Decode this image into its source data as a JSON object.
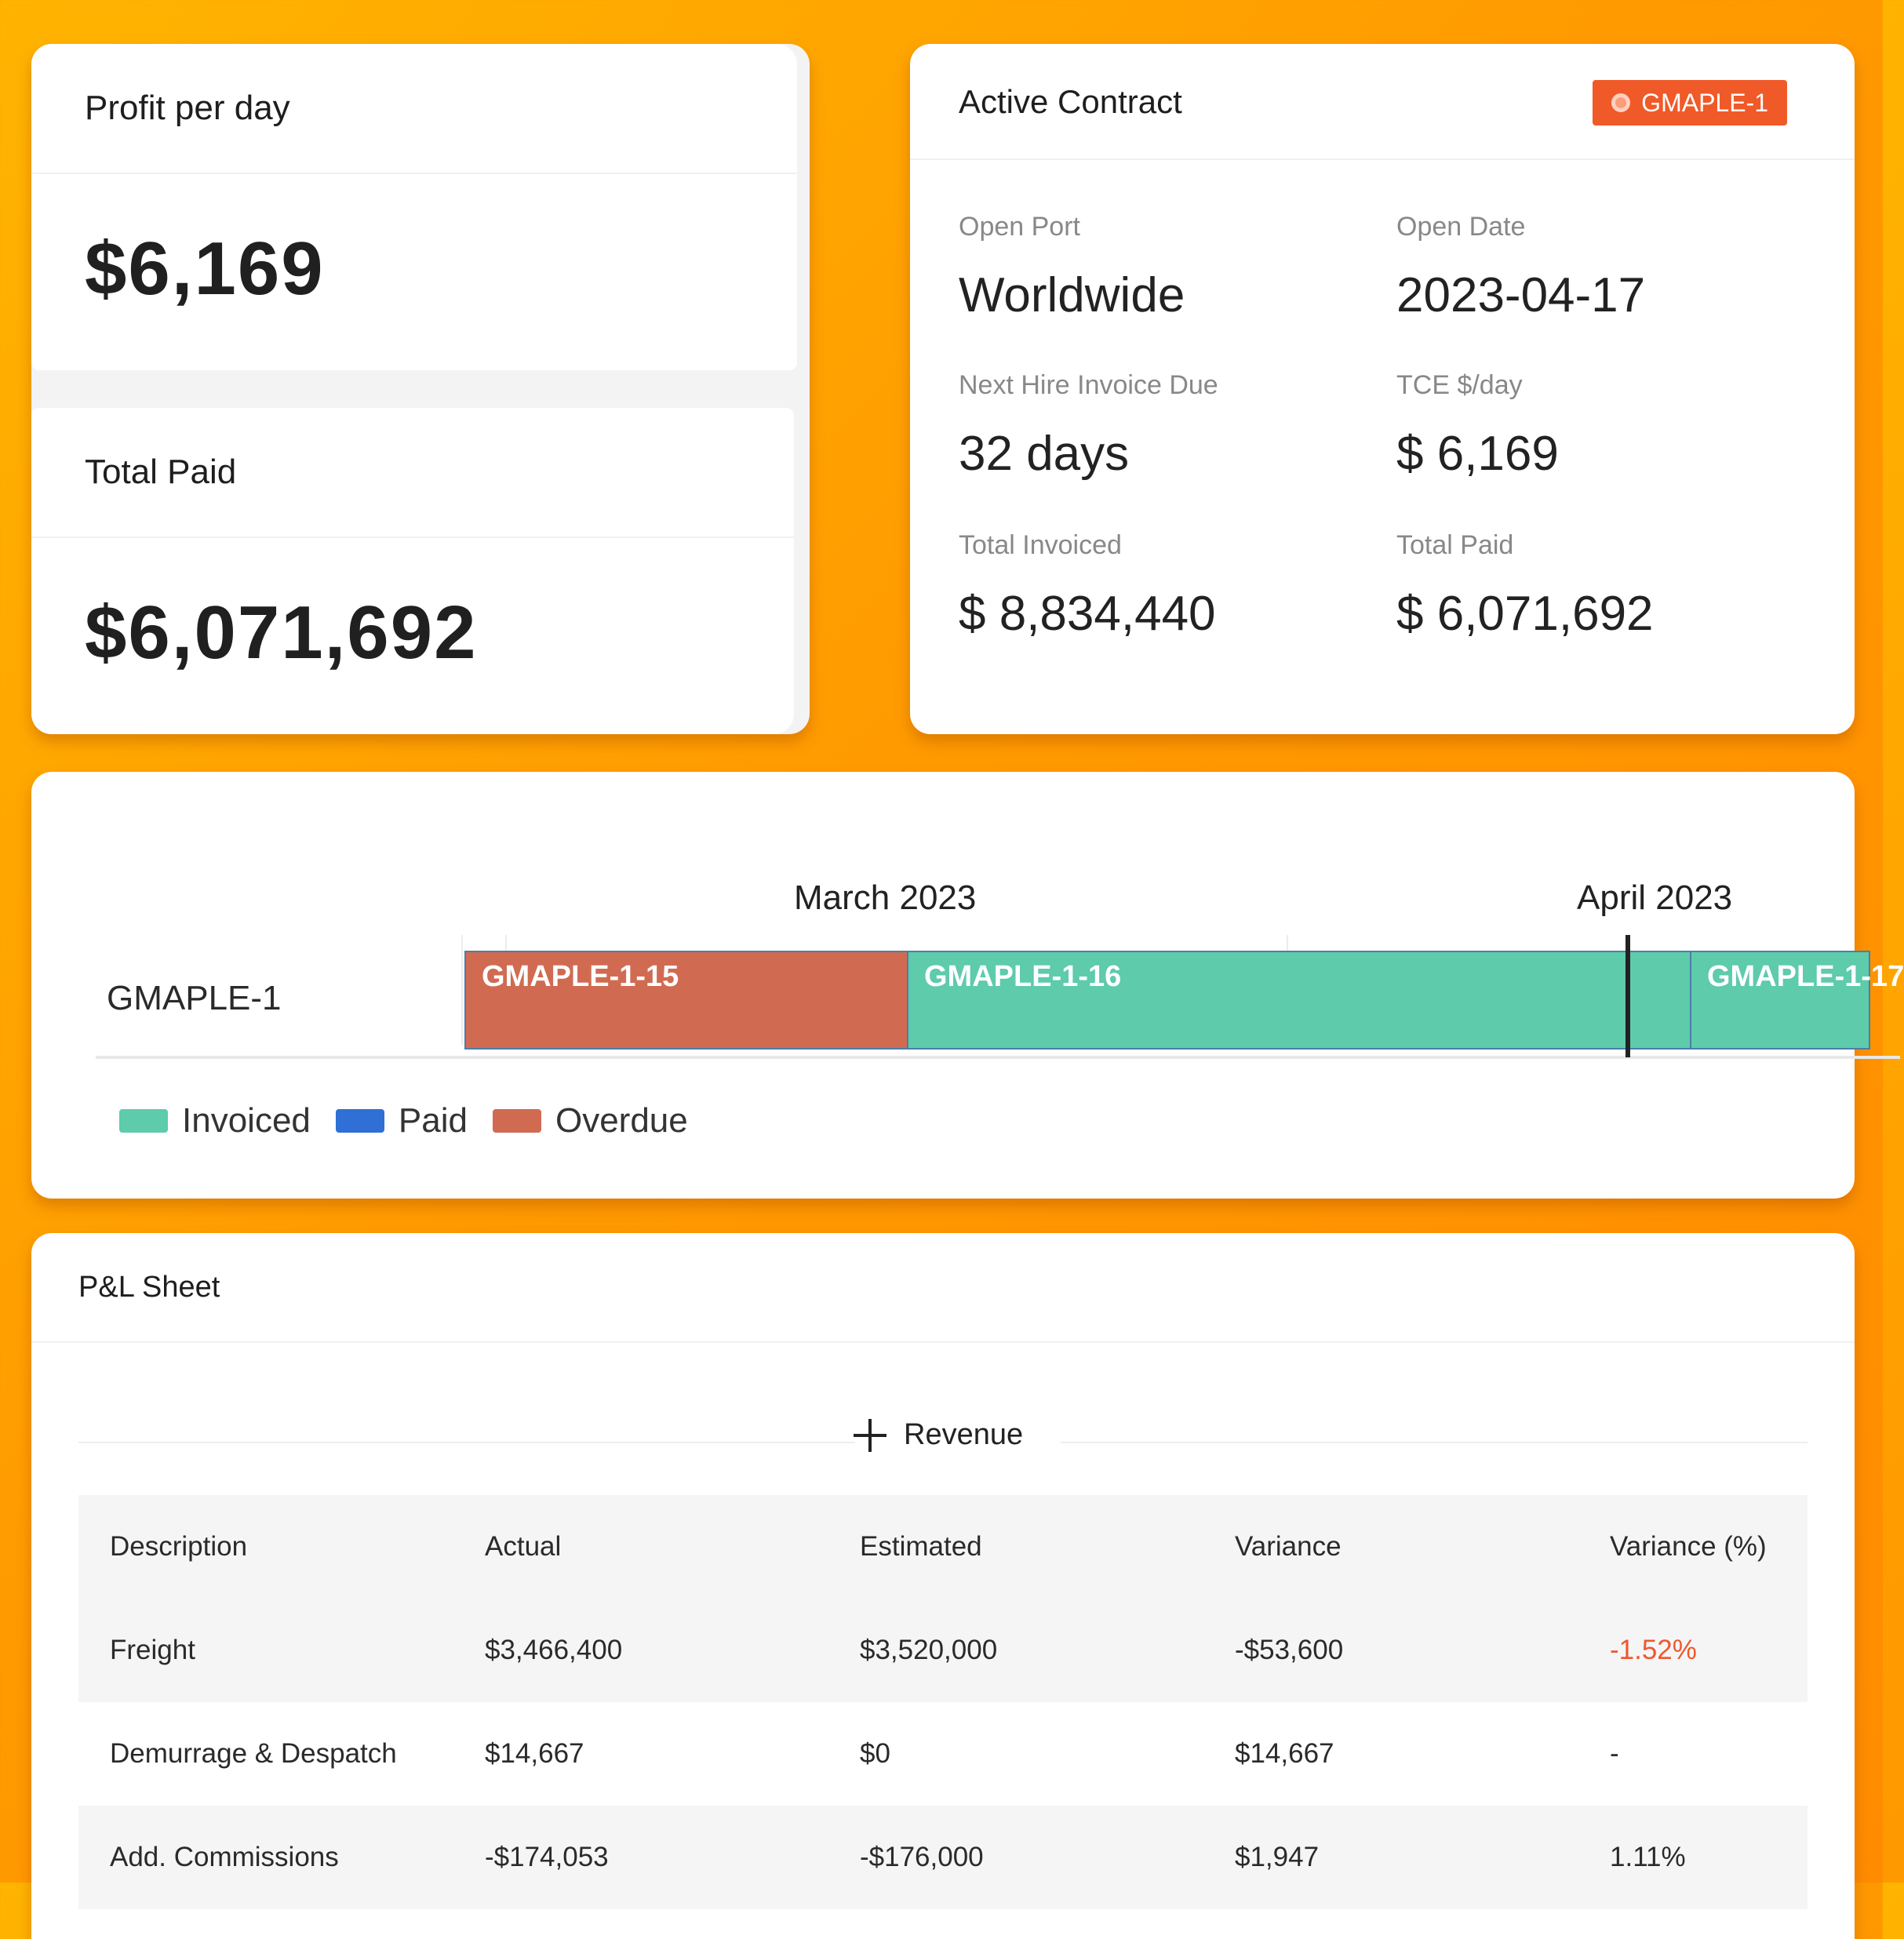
{
  "kpis": {
    "profit_per_day": {
      "title": "Profit per day",
      "value": "$6,169"
    },
    "total_paid": {
      "title": "Total Paid",
      "value": "$6,071,692"
    }
  },
  "contract": {
    "title": "Active Contract",
    "tag": "GMAPLE-1",
    "accent_color": "#f05a28",
    "fields": {
      "open_port": {
        "label": "Open Port",
        "value": "Worldwide"
      },
      "open_date": {
        "label": "Open Date",
        "value": "2023-04-17"
      },
      "next_invoice": {
        "label": "Next Hire Invoice Due",
        "value": "32 days"
      },
      "tce": {
        "label": "TCE $/day",
        "value": "$ 6,169"
      },
      "total_invoiced": {
        "label": "Total Invoiced",
        "value": "$ 8,834,440"
      },
      "total_paid": {
        "label": "Total Paid",
        "value": "$ 6,071,692"
      }
    }
  },
  "timeline": {
    "months": [
      "March 2023",
      "April 2023"
    ],
    "row_label": "GMAPLE-1",
    "bars": [
      {
        "label": "GMAPLE-1-15",
        "status": "Overdue"
      },
      {
        "label": "GMAPLE-1-16",
        "status": "Invoiced"
      },
      {
        "label": "GMAPLE-1-17",
        "status": "Invoiced"
      }
    ],
    "legend": [
      {
        "label": "Invoiced",
        "color": "#5ecbab"
      },
      {
        "label": "Paid",
        "color": "#2f6fd6"
      },
      {
        "label": "Overdue",
        "color": "#d06b52"
      }
    ]
  },
  "pl": {
    "title": "P&L Sheet",
    "section": "Revenue",
    "columns": [
      "Description",
      "Actual",
      "Estimated",
      "Variance",
      "Variance (%)"
    ],
    "rows": [
      [
        "Freight",
        "$3,466,400",
        "$3,520,000",
        "-$53,600",
        "-1.52%"
      ],
      [
        "Demurrage & Despatch",
        "$14,667",
        "$0",
        "$14,667",
        "-"
      ],
      [
        "Add. Commissions",
        "-$174,053",
        "-$176,000",
        "$1,947",
        "1.11%"
      ]
    ]
  }
}
